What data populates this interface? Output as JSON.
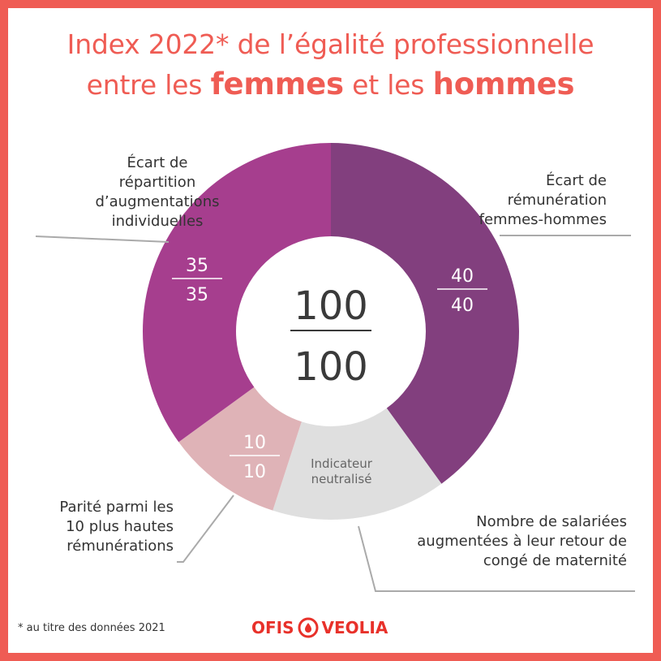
{
  "title": {
    "line1": "Index 2022* de l’égalité professionnelle",
    "line2_pre": "entre les ",
    "line2_strong1": "femmes",
    "line2_mid": " et les ",
    "line2_strong2": "hommes"
  },
  "center": {
    "score": "100",
    "total": "100"
  },
  "footnote": "* au titre des données 2021",
  "logo": {
    "left": "OFIS",
    "right": "VEOLIA"
  },
  "colors": {
    "frame": "#EF5C54",
    "remuneration": "#823F7E",
    "augmentations": "#A63E8E",
    "parite": "#DFB3B7",
    "maternite": "#DFDFDF"
  },
  "chart_data": {
    "type": "pie",
    "segments": [
      {
        "label": "Écart de rémunération femmes-hommes",
        "label_lines": [
          "Écart de",
          "rémunération",
          "femmes-hommes"
        ],
        "score": "40",
        "max": "40",
        "value": 40
      },
      {
        "label": "Nombre de salariées augmentées à leur retour de congé de maternité",
        "label_lines": [
          "Nombre de salariées",
          "augmentées à leur retour de",
          "congé de maternité"
        ],
        "inner_lines": [
          "Indicateur",
          "neutralisé"
        ],
        "value": 15
      },
      {
        "label": "Parité parmi les 10 plus hautes rémunérations",
        "label_lines": [
          "Parité parmi les",
          "10 plus hautes",
          "rémunérations"
        ],
        "score": "10",
        "max": "10",
        "value": 10
      },
      {
        "label": "Écart de répartition d’augmentations individuelles",
        "label_lines": [
          "Écart de",
          "répartition",
          "d’augmentations",
          "individuelles"
        ],
        "score": "35",
        "max": "35",
        "value": 35
      }
    ]
  }
}
